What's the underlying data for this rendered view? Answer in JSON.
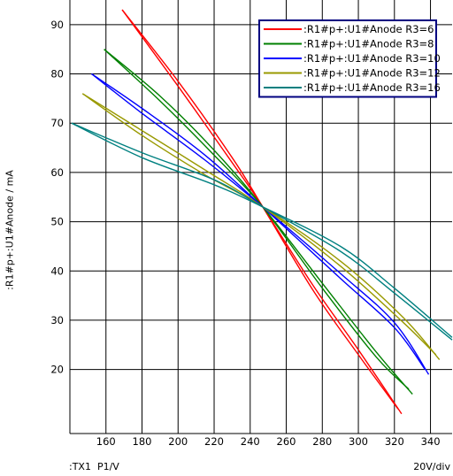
{
  "chart_data": {
    "type": "line",
    "title": "",
    "xlabel": ":TX1  P1/V",
    "ylabel": ":R1#p+:U1#Anode / mA",
    "scale_label": "20V/div",
    "xlim": [
      140,
      352
    ],
    "ylim": [
      7,
      95
    ],
    "xticks": [
      160,
      180,
      200,
      220,
      240,
      260,
      280,
      300,
      320,
      340
    ],
    "yticks": [
      20,
      30,
      40,
      50,
      60,
      70,
      80,
      90
    ],
    "grid": true,
    "legend_position": "top-right",
    "series": [
      {
        "name": ":R1#p+:U1#Anode R3=6",
        "color": "#ff0000",
        "x": [
          169,
          200,
          230,
          247,
          275,
          300,
          324
        ],
        "y": [
          93,
          77.5,
          62,
          53,
          37,
          24,
          11
        ],
        "x2": [
          169,
          200,
          230,
          247,
          275,
          300,
          322
        ],
        "y2": [
          93,
          78.5,
          63,
          53,
          36,
          23,
          12
        ]
      },
      {
        "name": ":R1#p+:U1#Anode R3=8",
        "color": "#008000",
        "x": [
          159,
          190,
          220,
          247,
          280,
          310,
          330
        ],
        "y": [
          85,
          74.5,
          63.5,
          53,
          37.5,
          23.5,
          15
        ],
        "x2": [
          159,
          190,
          220,
          247,
          280,
          310,
          328
        ],
        "y2": [
          85,
          75.5,
          64.5,
          53,
          36.5,
          22.5,
          16
        ]
      },
      {
        "name": ":R1#p+:U1#Anode R3=10",
        "color": "#0000ff",
        "x": [
          152,
          180,
          215,
          247,
          290,
          320,
          339
        ],
        "y": [
          80,
          72,
          62.5,
          53,
          39.5,
          29.5,
          19
        ],
        "x2": [
          152,
          180,
          215,
          247,
          290,
          320,
          337
        ],
        "y2": [
          80,
          73,
          63.5,
          53,
          38.5,
          28.5,
          20
        ]
      },
      {
        "name": ":R1#p+:U1#Anode R3=12",
        "color": "#999900",
        "x": [
          147,
          180,
          215,
          247,
          290,
          325,
          345
        ],
        "y": [
          76,
          67.5,
          59.5,
          53,
          42,
          30.5,
          22
        ],
        "x2": [
          147,
          180,
          215,
          247,
          290,
          325,
          343
        ],
        "y2": [
          76,
          68.5,
          60.5,
          53,
          41,
          29.5,
          23
        ]
      },
      {
        "name": ":R1#p+:U1#Anode R3=16",
        "color": "#008080",
        "x": [
          141,
          180,
          220,
          247,
          290,
          320,
          352
        ],
        "y": [
          70,
          63,
          57.5,
          53,
          45,
          36.5,
          26.5
        ],
        "x2": [
          141,
          180,
          220,
          247,
          290,
          320,
          352
        ],
        "y2": [
          70,
          64,
          58.5,
          53,
          44,
          35.5,
          26
        ]
      }
    ]
  }
}
